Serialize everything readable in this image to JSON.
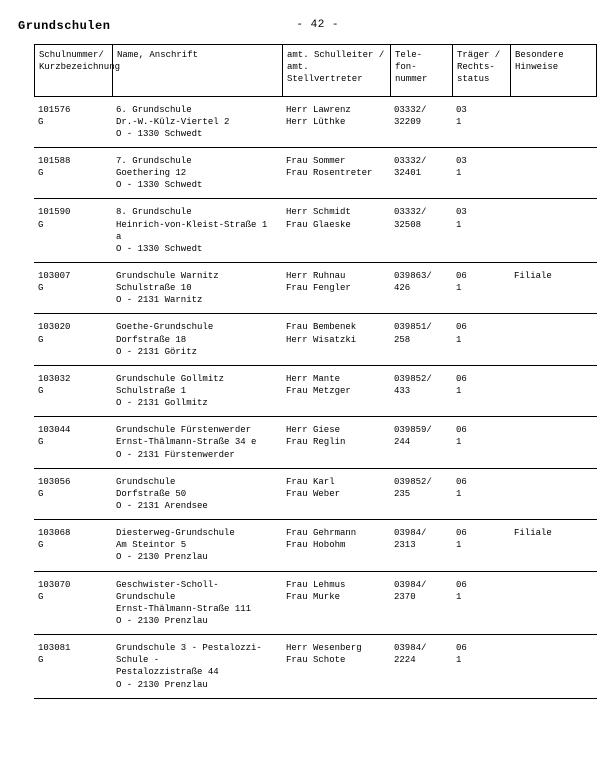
{
  "page": {
    "title": "Grundschulen",
    "page_number": "- 42 -"
  },
  "columns": {
    "id": "Schulnummer/\nKurzbezeichnung",
    "name": "Name, Anschrift",
    "head": "amt. Schulleiter /\namt. Stellvertreter",
    "phone": "Tele-\nfon-\nnummer",
    "traeger": "Träger /\nRechts-\nstatus",
    "remarks": "Besondere\nHinweise"
  },
  "rows": [
    {
      "id": "101576\nG",
      "name": "6. Grundschule\nDr.-W.-Külz-Viertel 2\nO - 1330 Schwedt",
      "head": "Herr Lawrenz\nHerr Lüthke",
      "phone": "03332/\n32209",
      "traeger": "03\n1",
      "remarks": ""
    },
    {
      "id": "101588\nG",
      "name": "7. Grundschule\nGoethering 12\nO - 1330 Schwedt",
      "head": "Frau Sommer\nFrau Rosentreter",
      "phone": "03332/\n32401",
      "traeger": "03\n1",
      "remarks": ""
    },
    {
      "id": "101590\nG",
      "name": "8. Grundschule\nHeinrich-von-Kleist-Straße 1 a\nO - 1330 Schwedt",
      "head": "Herr Schmidt\nFrau Glaeske",
      "phone": "03332/\n32508",
      "traeger": "03\n1",
      "remarks": ""
    },
    {
      "id": "103007\nG",
      "name": "Grundschule Warnitz\nSchulstraße 10\nO - 2131 Warnitz",
      "head": "Herr Ruhnau\nFrau Fengler",
      "phone": "039863/\n426",
      "traeger": "06\n1",
      "remarks": "Filiale"
    },
    {
      "id": "103020\nG",
      "name": "Goethe-Grundschule\nDorfstraße 18\nO - 2131 Göritz",
      "head": "Frau Bembenek\nHerr Wisatzki",
      "phone": "039851/\n258",
      "traeger": "06\n1",
      "remarks": ""
    },
    {
      "id": "103032\nG",
      "name": "Grundschule Gollmitz\nSchulstraße 1\nO - 2131 Gollmitz",
      "head": "Herr Mante\nFrau Metzger",
      "phone": "039852/\n433",
      "traeger": "06\n1",
      "remarks": ""
    },
    {
      "id": "103044\nG",
      "name": "Grundschule Fürstenwerder\nErnst-Thälmann-Straße 34 e\nO - 2131 Fürstenwerder",
      "head": "Herr Giese\nFrau Reglin",
      "phone": "039859/\n244",
      "traeger": "06\n1",
      "remarks": ""
    },
    {
      "id": "103056\nG",
      "name": "Grundschule\nDorfstraße 50\nO - 2131 Arendsee",
      "head": "Frau Karl\nFrau Weber",
      "phone": "039852/\n235",
      "traeger": "06\n1",
      "remarks": ""
    },
    {
      "id": "103068\nG",
      "name": "Diesterweg-Grundschule\nAm Steintor 5\nO - 2130 Prenzlau",
      "head": "Frau Gehrmann\nFrau Hobohm",
      "phone": "03984/\n2313",
      "traeger": "06\n1",
      "remarks": "Filiale"
    },
    {
      "id": "103070\nG",
      "name": "Geschwister-Scholl-Grundschule\nErnst-Thälmann-Straße 111\nO - 2130 Prenzlau",
      "head": "Frau Lehmus\nFrau Murke",
      "phone": "03984/\n2370",
      "traeger": "06\n1",
      "remarks": ""
    },
    {
      "id": "103081\nG",
      "name": "Grundschule 3 - Pestalozzi-Schule -\nPestalozzistraße 44\nO - 2130 Prenzlau",
      "head": "Herr Wesenberg\nFrau Schote",
      "phone": "03984/\n2224",
      "traeger": "06\n1",
      "remarks": ""
    }
  ]
}
